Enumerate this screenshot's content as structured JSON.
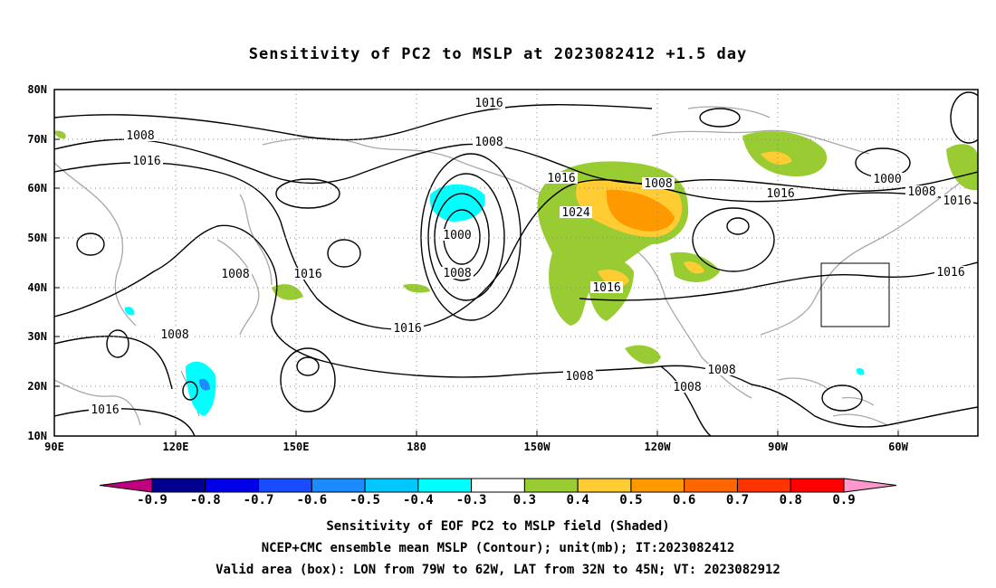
{
  "title": "Sensitivity of PC2 to MSLP at 2023082412 +1.5 day",
  "lat_labels": [
    "80N",
    "70N",
    "60N",
    "50N",
    "40N",
    "30N",
    "20N",
    "10N"
  ],
  "lon_labels": [
    "90E",
    "120E",
    "150E",
    "180",
    "150W",
    "120W",
    "90W",
    "60W"
  ],
  "contour_labels": [
    {
      "text": "1016"
    },
    {
      "text": "1008"
    },
    {
      "text": "1016"
    },
    {
      "text": "1008"
    },
    {
      "text": "1016"
    },
    {
      "text": "1008"
    },
    {
      "text": "1024"
    },
    {
      "text": "1000"
    },
    {
      "text": "1008"
    },
    {
      "text": "1016"
    },
    {
      "text": "1000"
    },
    {
      "text": "1008"
    },
    {
      "text": "1016"
    },
    {
      "text": "1016"
    },
    {
      "text": "1008"
    },
    {
      "text": "1016"
    },
    {
      "text": "1016"
    },
    {
      "text": "1008"
    },
    {
      "text": "1016"
    },
    {
      "text": "1008"
    },
    {
      "text": "1008"
    },
    {
      "text": "1008"
    },
    {
      "text": "1016"
    }
  ],
  "colorbar": {
    "colors": [
      "#c0007f",
      "#00008f",
      "#0000e6",
      "#1a4cff",
      "#1a8cff",
      "#00c8ff",
      "#00ffff",
      "#ffffff",
      "#99cc33",
      "#ffcc33",
      "#ff9900",
      "#ff6600",
      "#ff3300",
      "#ff0000",
      "#ff99cc"
    ],
    "labels": [
      "-0.9",
      "-0.8",
      "-0.7",
      "-0.6",
      "-0.5",
      "-0.4",
      "-0.3",
      "0.3",
      "0.4",
      "0.5",
      "0.6",
      "0.7",
      "0.8",
      "0.9"
    ]
  },
  "captions": [
    "Sensitivity of EOF PC2 to MSLP field (Shaded)",
    "NCEP+CMC ensemble mean MSLP (Contour); unit(mb); IT:2023082412",
    "Valid area (box): LON from 79W to 62W, LAT from 32N to 45N; VT: 2023082912"
  ]
}
